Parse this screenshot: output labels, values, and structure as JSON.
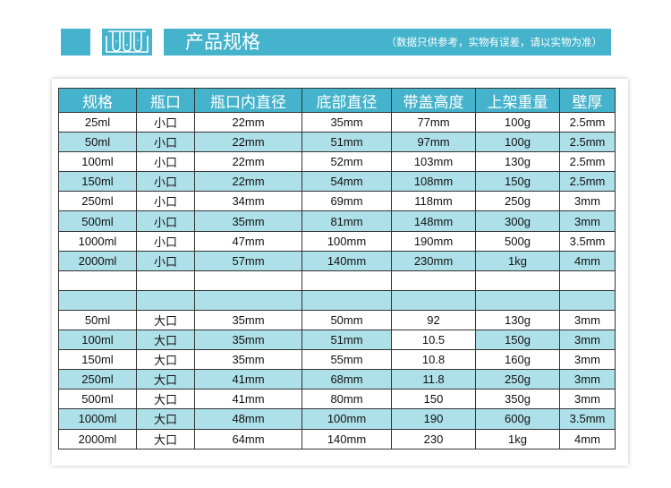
{
  "header": {
    "title": "产品规格",
    "note": "（数据只供参考，实物有误差，请以实物为准）",
    "icon": "test-tubes-icon",
    "accent": "#44b3cb",
    "row_alt_color": "#aee0ea"
  },
  "table": {
    "columns": [
      "规格",
      "瓶口",
      "瓶口内直径",
      "底部直径",
      "带盖高度",
      "上架重量",
      "壁厚"
    ],
    "rows": [
      [
        "25ml",
        "小口",
        "22mm",
        "35mm",
        "77mm",
        "100g",
        "2.5mm"
      ],
      [
        "50ml",
        "小口",
        "22mm",
        "51mm",
        "97mm",
        "100g",
        "2.5mm"
      ],
      [
        "100ml",
        "小口",
        "22mm",
        "52mm",
        "103mm",
        "130g",
        "2.5mm"
      ],
      [
        "150ml",
        "小口",
        "22mm",
        "54mm",
        "108mm",
        "150g",
        "2.5mm"
      ],
      [
        "250ml",
        "小口",
        "34mm",
        "69mm",
        "118mm",
        "250g",
        "3mm"
      ],
      [
        "500ml",
        "小口",
        "35mm",
        "81mm",
        "148mm",
        "300g",
        "3mm"
      ],
      [
        "1000ml",
        "小口",
        "47mm",
        "100mm",
        "190mm",
        "500g",
        "3.5mm"
      ],
      [
        "2000ml",
        "小口",
        "57mm",
        "140mm",
        "230mm",
        "1kg",
        "4mm"
      ],
      [
        "",
        "",
        "",
        "",
        "",
        "",
        ""
      ],
      [
        "",
        "",
        "",
        "",
        "",
        "",
        ""
      ],
      [
        "50ml",
        "大口",
        "35mm",
        "50mm",
        "92",
        "130g",
        "3mm"
      ],
      [
        "100ml",
        "大口",
        "35mm",
        "51mm",
        "10.5",
        "150g",
        "3mm"
      ],
      [
        "150ml",
        "大口",
        "35mm",
        "55mm",
        "10.8",
        "160g",
        "3mm"
      ],
      [
        "250ml",
        "大口",
        "41mm",
        "68mm",
        "11.8",
        "250g",
        "3mm"
      ],
      [
        "500ml",
        "大口",
        "41mm",
        "80mm",
        "150",
        "350g",
        "3mm"
      ],
      [
        "1000ml",
        "大口",
        "48mm",
        "100mm",
        "190",
        "600g",
        "3.5mm"
      ],
      [
        "2000ml",
        "大口",
        "64mm",
        "140mm",
        "230",
        "1kg",
        "4mm"
      ]
    ]
  }
}
